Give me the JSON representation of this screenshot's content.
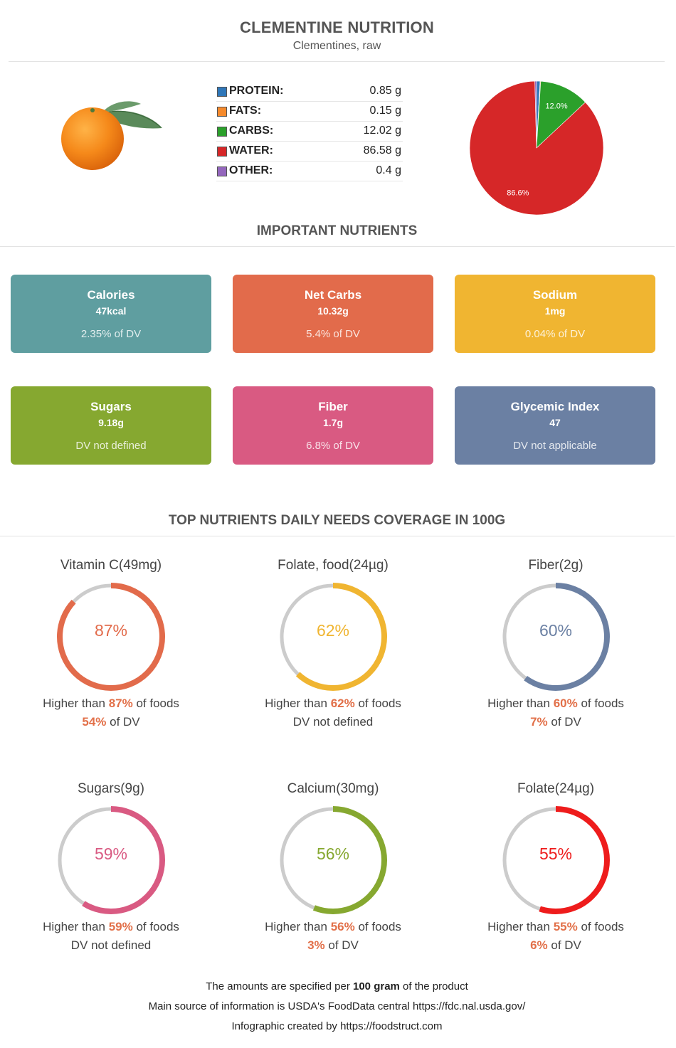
{
  "header": {
    "title": "CLEMENTINE NUTRITION",
    "subtitle": "Clementines, raw"
  },
  "macros": [
    {
      "name": "PROTEIN:",
      "value": "0.85 g",
      "color": "#2f77b9"
    },
    {
      "name": "FATS:",
      "value": "0.15 g",
      "color": "#f58a2c"
    },
    {
      "name": "CARBS:",
      "value": "12.02 g",
      "color": "#2ba02b"
    },
    {
      "name": "WATER:",
      "value": "86.58 g",
      "color": "#d62728"
    },
    {
      "name": "OTHER:",
      "value": "0.4 g",
      "color": "#9467bd"
    }
  ],
  "chart_data": {
    "type": "pie",
    "series": [
      {
        "name": "PROTEIN",
        "value": 0.85,
        "color": "#2f77b9"
      },
      {
        "name": "FATS",
        "value": 0.15,
        "color": "#f58a2c"
      },
      {
        "name": "CARBS",
        "value": 12.02,
        "color": "#2ba02b"
      },
      {
        "name": "WATER",
        "value": 86.58,
        "color": "#d62728"
      },
      {
        "name": "OTHER",
        "value": 0.4,
        "color": "#9467bd"
      }
    ],
    "labels": [
      {
        "series": "CARBS",
        "text": "12.0%"
      },
      {
        "series": "WATER",
        "text": "86.6%"
      }
    ]
  },
  "important": {
    "title": "IMPORTANT NUTRIENTS",
    "cards": [
      {
        "name": "Calories",
        "value": "47kcal",
        "dv": "2.35% of DV",
        "color": "#5f9ea0"
      },
      {
        "name": "Net Carbs",
        "value": "10.32g",
        "dv": "5.4% of DV",
        "color": "#e26b4b"
      },
      {
        "name": "Sodium",
        "value": "1mg",
        "dv": "0.04% of DV",
        "color": "#f0b531"
      },
      {
        "name": "Sugars",
        "value": "9.18g",
        "dv": "DV not defined",
        "color": "#86a830"
      },
      {
        "name": "Fiber",
        "value": "1.7g",
        "dv": "6.8% of DV",
        "color": "#d95a82"
      },
      {
        "name": "Glycemic Index",
        "value": "47",
        "dv": "DV not applicable",
        "color": "#6b80a3"
      }
    ]
  },
  "coverage": {
    "title": "TOP NUTRIENTS DAILY NEEDS COVERAGE IN 100G",
    "items": [
      {
        "name": "Vitamin C(49mg)",
        "percent": 87,
        "percent_label": "87%",
        "color": "#e26b4b",
        "higher_pre": "Higher than ",
        "higher_pct": "87%",
        "higher_post": " of foods",
        "dv_pct": "54%",
        "dv_text": " of DV"
      },
      {
        "name": "Folate, food(24µg)",
        "percent": 62,
        "percent_label": "62%",
        "color": "#f0b531",
        "higher_pre": "Higher than ",
        "higher_pct": "62%",
        "higher_post": " of foods",
        "dv_pct": "",
        "dv_text": "DV not defined"
      },
      {
        "name": "Fiber(2g)",
        "percent": 60,
        "percent_label": "60%",
        "color": "#6b80a3",
        "higher_pre": "Higher than ",
        "higher_pct": "60%",
        "higher_post": " of foods",
        "dv_pct": "7%",
        "dv_text": " of DV"
      },
      {
        "name": "Sugars(9g)",
        "percent": 59,
        "percent_label": "59%",
        "color": "#d95a82",
        "higher_pre": "Higher than ",
        "higher_pct": "59%",
        "higher_post": " of foods",
        "dv_pct": "",
        "dv_text": "DV not defined"
      },
      {
        "name": "Calcium(30mg)",
        "percent": 56,
        "percent_label": "56%",
        "color": "#86a830",
        "higher_pre": "Higher than ",
        "higher_pct": "56%",
        "higher_post": " of foods",
        "dv_pct": "3%",
        "dv_text": " of DV"
      },
      {
        "name": "Folate(24µg)",
        "percent": 55,
        "percent_label": "55%",
        "color": "#ee1c1c",
        "higher_pre": "Higher than ",
        "higher_pct": "55%",
        "higher_post": " of foods",
        "dv_pct": "6%",
        "dv_text": " of DV"
      }
    ]
  },
  "footer": {
    "line1_pre": "The amounts are specified per ",
    "line1_bold": "100 gram",
    "line1_post": " of the product",
    "line2": "Main source of information is USDA's FoodData central https://fdc.nal.usda.gov/",
    "line3": "Infographic created by https://foodstruct.com"
  }
}
